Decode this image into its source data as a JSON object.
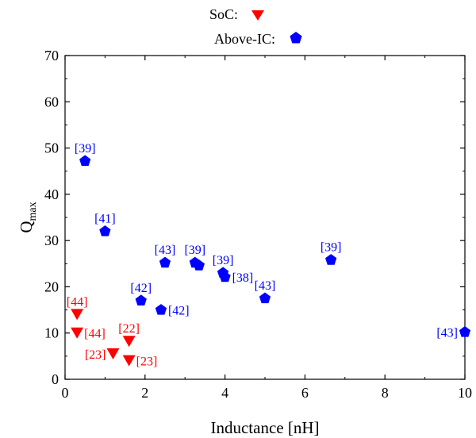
{
  "chart_data": {
    "type": "scatter",
    "xlabel": "Inductance [nH]",
    "ylabel_main": "Q",
    "ylabel_sub": "max",
    "xlim": [
      0,
      10
    ],
    "ylim": [
      0,
      70
    ],
    "x_ticks": [
      0,
      2,
      4,
      6,
      8,
      10
    ],
    "y_ticks": [
      0,
      10,
      20,
      30,
      40,
      50,
      60,
      70
    ],
    "legend_placement": "top-center",
    "series": [
      {
        "name": "SoC:",
        "marker": "down-triangle",
        "color": "#ff0000",
        "points": [
          {
            "x": 0.3,
            "y": 14,
            "label": "[44]",
            "label_pos": "above"
          },
          {
            "x": 0.3,
            "y": 10,
            "label": "[44]",
            "label_pos": "right"
          },
          {
            "x": 1.2,
            "y": 5.5,
            "label": "[23]",
            "label_pos": "left"
          },
          {
            "x": 1.6,
            "y": 8.2,
            "label": "[22]",
            "label_pos": "above"
          },
          {
            "x": 1.6,
            "y": 4,
            "label": "[23]",
            "label_pos": "right"
          }
        ]
      },
      {
        "name": "Above-IC:",
        "marker": "pentagon",
        "color": "#0000ff",
        "points": [
          {
            "x": 0.5,
            "y": 47.2,
            "label": "[39]",
            "label_pos": "above"
          },
          {
            "x": 1.0,
            "y": 32,
            "label": "[41]",
            "label_pos": "above"
          },
          {
            "x": 1.9,
            "y": 17,
            "label": "[42]",
            "label_pos": "above"
          },
          {
            "x": 2.4,
            "y": 15,
            "label": "[42]",
            "label_pos": "right"
          },
          {
            "x": 2.5,
            "y": 25.2,
            "label": "[43]",
            "label_pos": "above"
          },
          {
            "x": 3.25,
            "y": 25.2,
            "label": "[39]",
            "label_pos": "above"
          },
          {
            "x": 3.35,
            "y": 24.6,
            "label": "",
            "label_pos": "none"
          },
          {
            "x": 3.95,
            "y": 23,
            "label": "[39]",
            "label_pos": "above"
          },
          {
            "x": 4.0,
            "y": 22.1,
            "label": "[38]",
            "label_pos": "right"
          },
          {
            "x": 5.0,
            "y": 17.5,
            "label": "[43]",
            "label_pos": "above"
          },
          {
            "x": 6.65,
            "y": 25.8,
            "label": "[39]",
            "label_pos": "above"
          },
          {
            "x": 10.0,
            "y": 10.2,
            "label": "[43]",
            "label_pos": "left"
          }
        ]
      }
    ]
  }
}
